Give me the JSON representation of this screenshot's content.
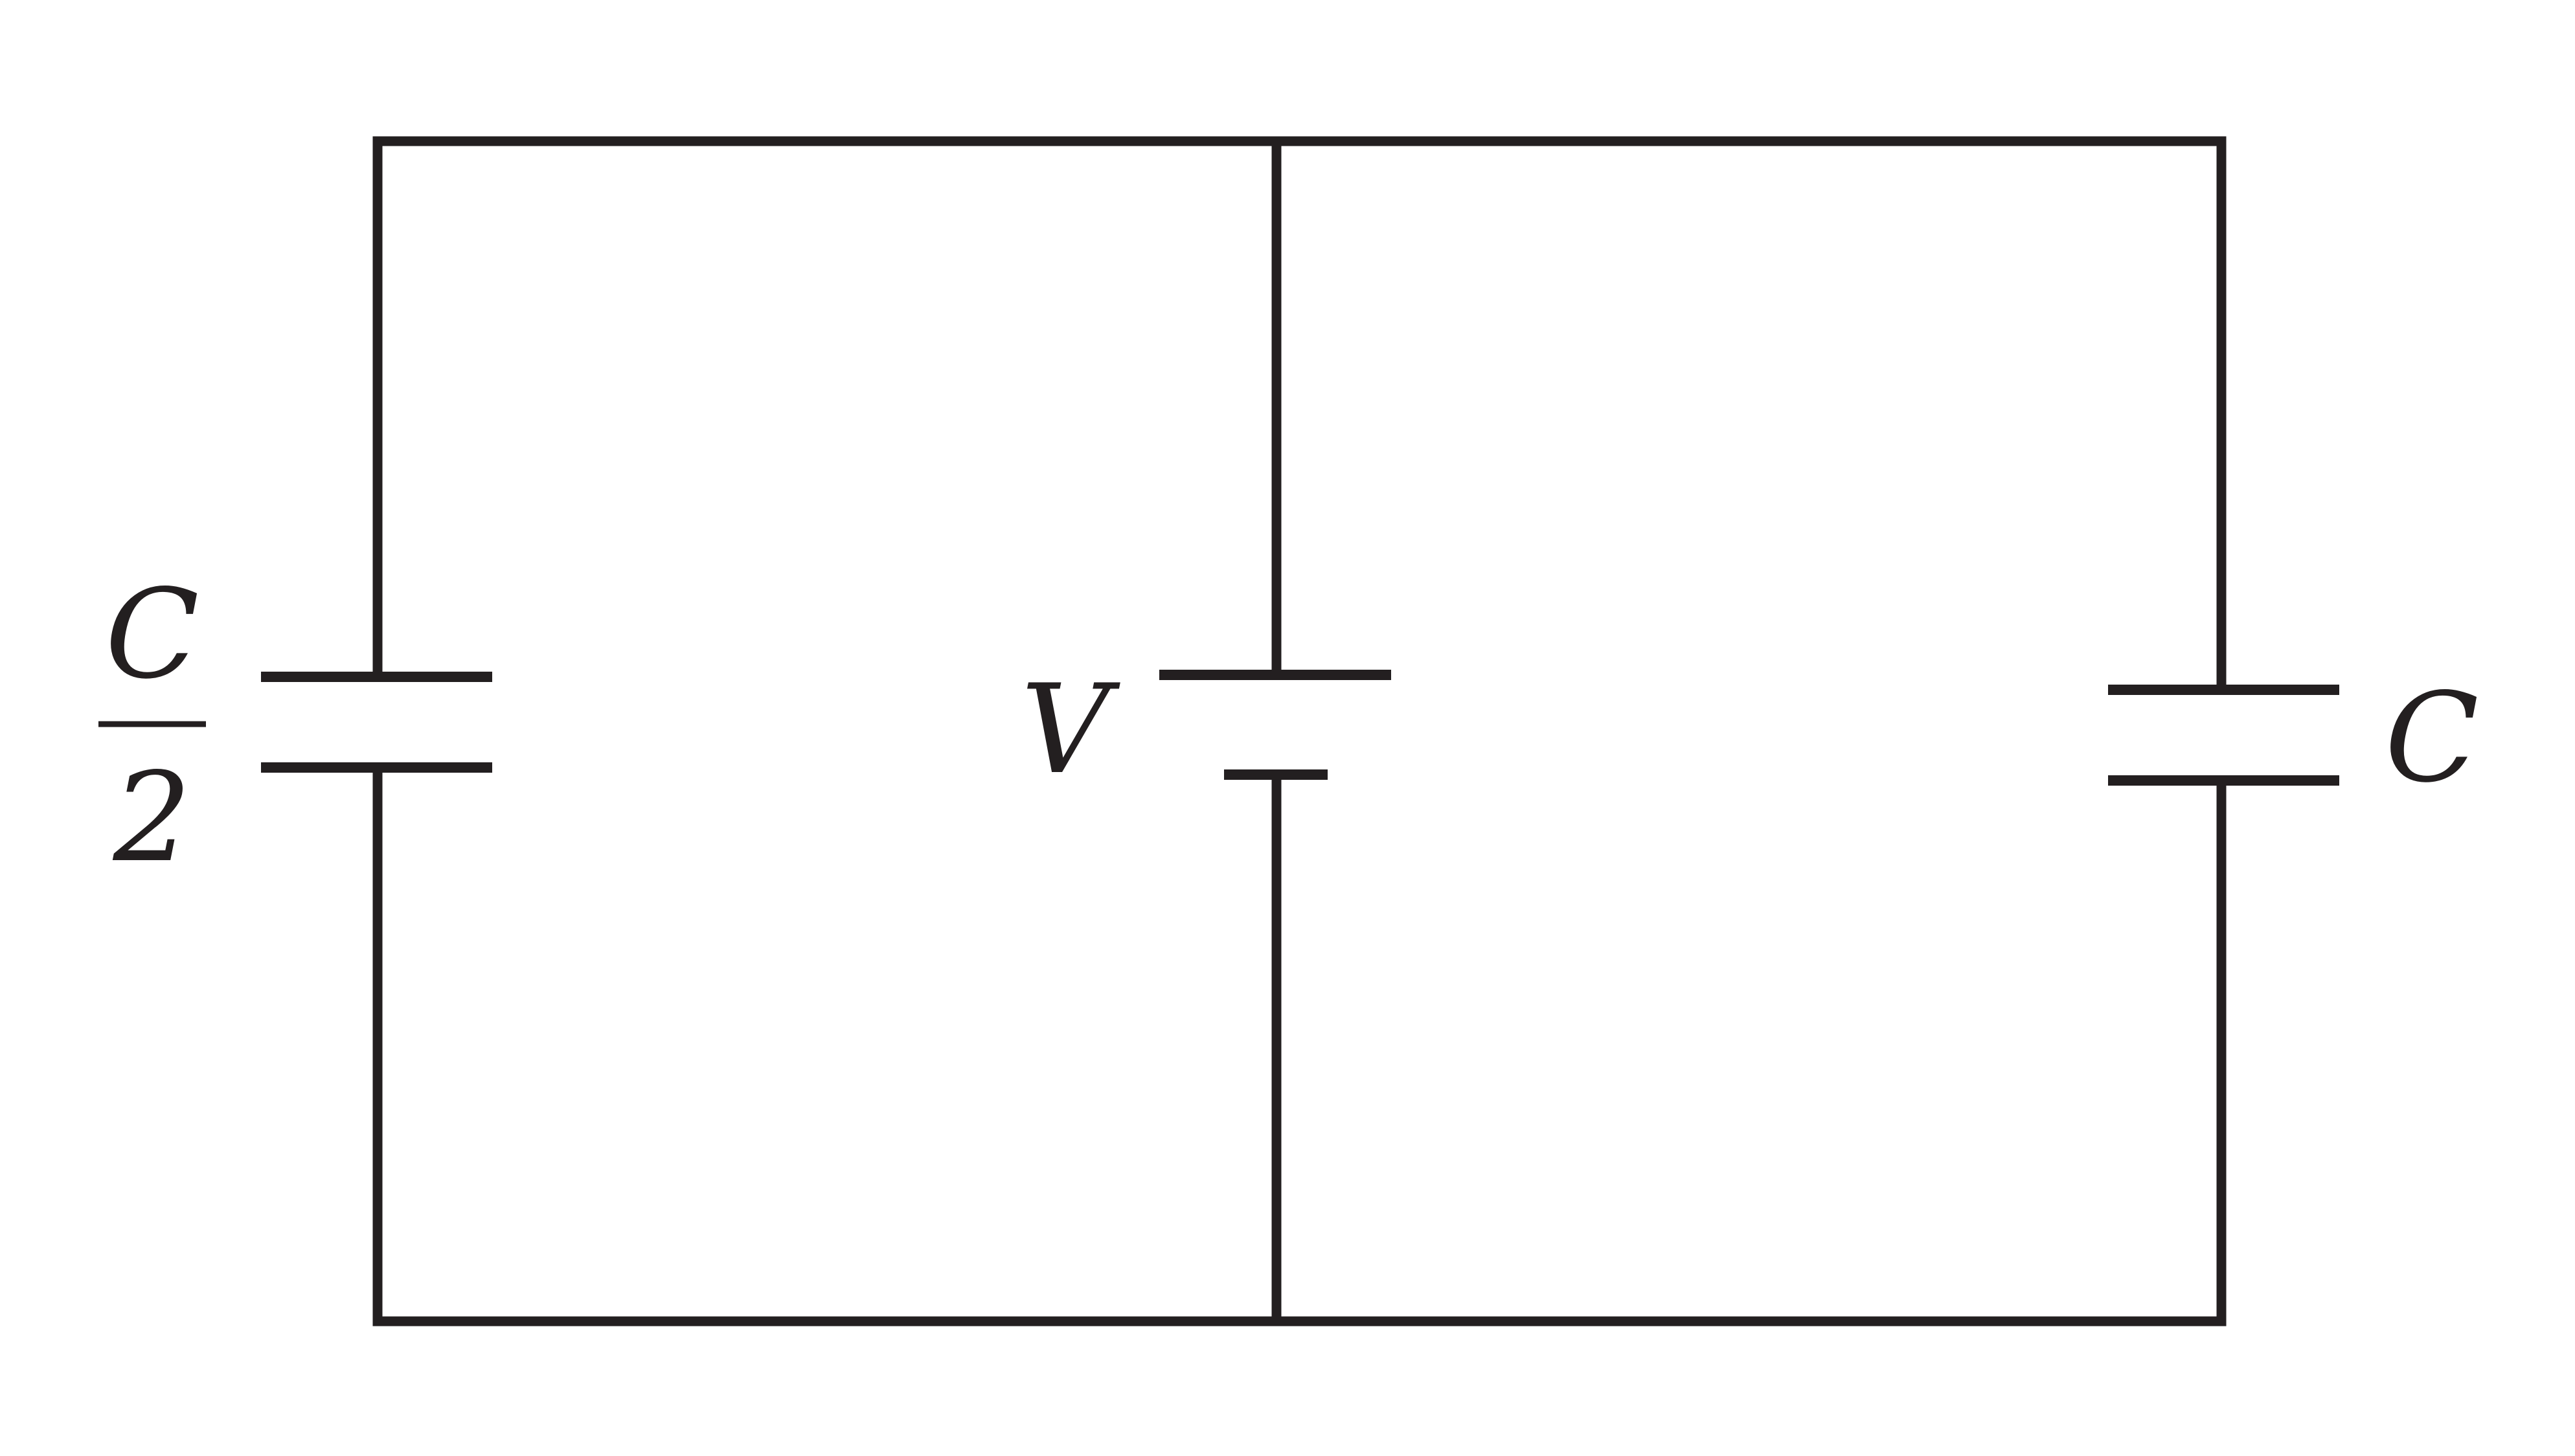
{
  "diagram": {
    "capacitor_left": {
      "numerator": "C",
      "denominator": "2"
    },
    "source": {
      "label": "V"
    },
    "capacitor_right": {
      "label": "C"
    }
  },
  "colors": {
    "line": "#231f20",
    "background": "#ffffff"
  }
}
